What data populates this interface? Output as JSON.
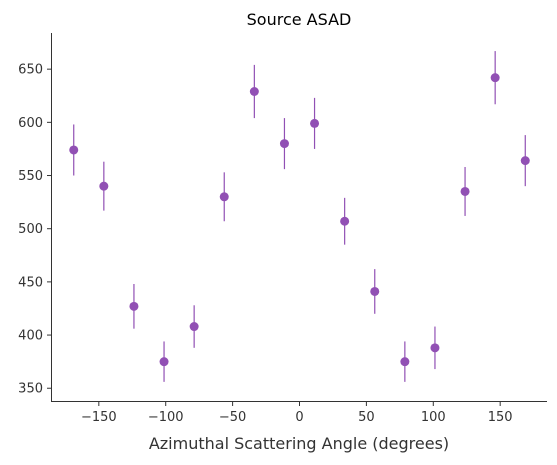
{
  "chart_data": {
    "type": "scatter",
    "title": "Source ASAD",
    "xlabel": "Azimuthal Scattering Angle (degrees)",
    "ylabel": "",
    "xlim": [
      -185,
      185
    ],
    "ylim": [
      338,
      684
    ],
    "xticks": [
      -150,
      -100,
      -50,
      0,
      50,
      100,
      150
    ],
    "xtick_labels": [
      "−150",
      "−100",
      "−50",
      "0",
      "50",
      "100",
      "150"
    ],
    "yticks": [
      350,
      400,
      450,
      500,
      550,
      600,
      650
    ],
    "ytick_labels": [
      "350",
      "400",
      "450",
      "500",
      "550",
      "600",
      "650"
    ],
    "grid": false,
    "color": "#9150b4",
    "series": [
      {
        "x": [
          -168.75,
          -146.25,
          -123.75,
          -101.25,
          -78.75,
          -56.25,
          -33.75,
          -11.25,
          11.25,
          33.75,
          56.25,
          78.75,
          101.25,
          123.75,
          146.25,
          168.75
        ],
        "y": [
          574,
          540,
          427,
          375,
          408,
          530,
          629,
          580,
          599,
          507,
          441,
          375,
          388,
          535,
          642,
          564
        ],
        "yerr": [
          24,
          23,
          21,
          19,
          20,
          23,
          25,
          24,
          24,
          22,
          21,
          19,
          20,
          23,
          25,
          24
        ]
      }
    ]
  }
}
